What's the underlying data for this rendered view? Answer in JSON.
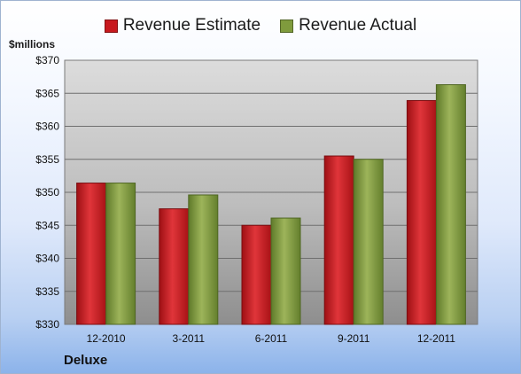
{
  "legend": {
    "estimate_label": "Revenue Estimate",
    "actual_label": "Revenue Actual"
  },
  "units_label": "$millions",
  "company": "Deluxe",
  "colors": {
    "estimate": "#c8191e",
    "actual": "#7f9b3d"
  },
  "chart_data": {
    "type": "bar",
    "title": "",
    "xlabel": "",
    "ylabel": "$millions",
    "categories": [
      "12-2010",
      "3-2011",
      "6-2011",
      "9-2011",
      "12-2011"
    ],
    "series": [
      {
        "name": "Revenue Estimate",
        "values": [
          351.4,
          347.5,
          345.0,
          355.5,
          363.9
        ]
      },
      {
        "name": "Revenue Actual",
        "values": [
          351.4,
          349.6,
          346.1,
          355.0,
          366.3
        ]
      }
    ],
    "ylim": [
      330,
      370
    ],
    "yticks": [
      "$330",
      "$335",
      "$340",
      "$345",
      "$350",
      "$355",
      "$360",
      "$365",
      "$370"
    ],
    "grid": true,
    "legend_position": "top"
  }
}
